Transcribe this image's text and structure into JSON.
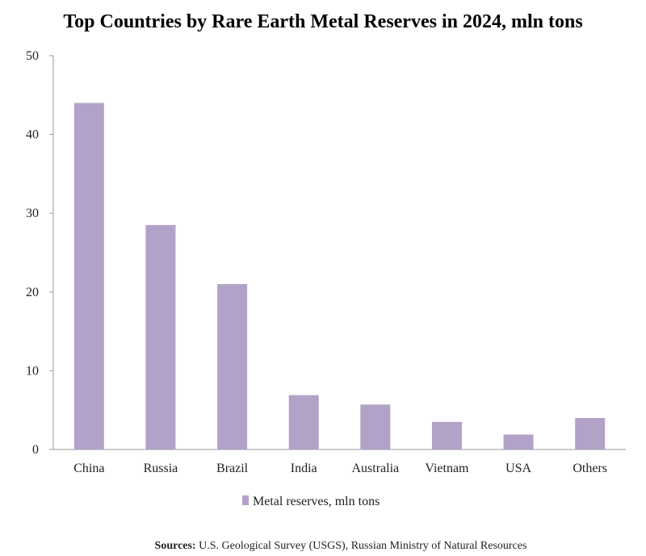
{
  "chart_data": {
    "type": "bar",
    "title": "Top Countries by Rare Earth Metal Reserves in 2024, mln tons",
    "categories": [
      "China",
      "Russia",
      "Brazil",
      "India",
      "Australia",
      "Vietnam",
      "USA",
      "Others"
    ],
    "series": [
      {
        "name": "Metal reserves, mln tons",
        "values": [
          44,
          28.5,
          21,
          6.9,
          5.7,
          3.5,
          1.9,
          4.0
        ],
        "color": "#b2a2c7"
      }
    ],
    "yticks": [
      "0",
      "10",
      "20",
      "30",
      "40",
      "50"
    ],
    "ylim": [
      0,
      50
    ],
    "grid": false,
    "legend_position": "bottom"
  },
  "source": {
    "label": "Sources:",
    "text": " U.S. Geological Survey (USGS), Russian Ministry of Natural Resources"
  }
}
